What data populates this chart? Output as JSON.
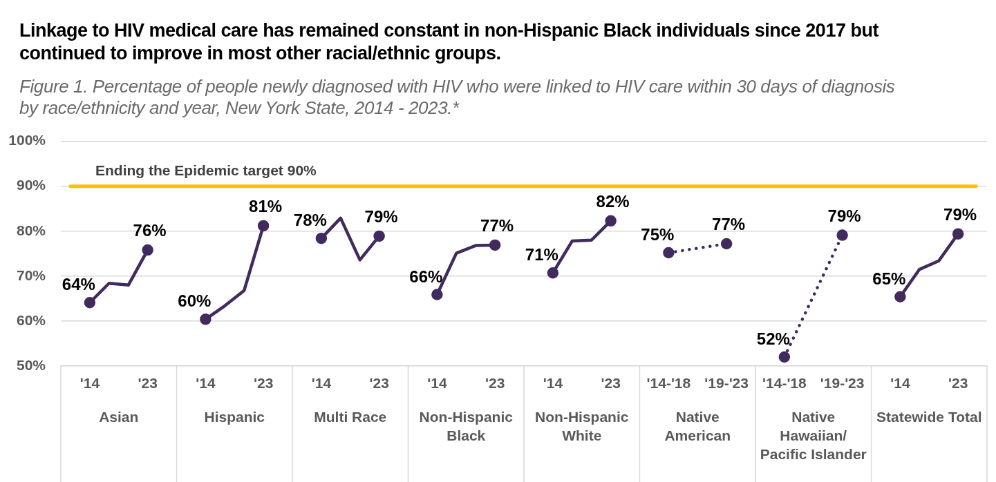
{
  "chart_data": {
    "type": "line",
    "title": "Linkage to HIV medical care has remained constant in non-Hispanic Black individuals since 2017 but continued to improve in most other racial/ethnic groups.",
    "subtitle": "Figure 1. Percentage of people newly diagnosed with HIV who were linked to HIV care within 30 days of diagnosis by race/ethnicity and year, New York State, 2014 - 2023.*",
    "categories": [
      null,
      "'14",
      null,
      null,
      "'23",
      null,
      null,
      "'14",
      null,
      null,
      "'23",
      null,
      null,
      "'14",
      null,
      null,
      "'23",
      null,
      null,
      "'14",
      null,
      null,
      "'23",
      null,
      null,
      "'14",
      null,
      null,
      "'23",
      null,
      null,
      "'14-'18",
      null,
      null,
      "'19-'23",
      null,
      null,
      "'14-'18",
      null,
      null,
      "'19-'23",
      null,
      null,
      "'14",
      null,
      null,
      "'23",
      null
    ],
    "series": [
      {
        "color": "#412b5e",
        "line_style": "solid",
        "values": [
          null,
          64.1,
          68.4,
          68.0,
          75.8,
          null,
          null,
          null,
          null,
          null,
          null,
          null,
          null,
          null,
          null,
          null,
          null,
          null,
          null,
          null,
          null,
          null,
          null,
          null,
          null,
          null,
          null,
          null,
          null,
          null,
          null,
          null,
          null,
          null,
          null,
          null,
          null,
          null,
          null,
          null,
          null,
          null,
          null,
          null,
          null,
          null,
          null,
          null
        ],
        "value_labels": [
          null,
          "64%",
          null,
          null,
          "76%",
          null,
          null,
          null,
          null,
          null,
          null,
          null,
          null,
          null,
          null,
          null,
          null,
          null,
          null,
          null,
          null,
          null,
          null,
          null,
          null,
          null,
          null,
          null,
          null,
          null,
          null,
          null,
          null,
          null,
          null,
          null,
          null,
          null,
          null,
          null,
          null,
          null,
          null,
          null,
          null,
          null,
          null,
          null
        ]
      },
      {
        "color": "#412b5e",
        "line_style": "solid",
        "values": [
          null,
          null,
          null,
          null,
          null,
          null,
          null,
          60.4,
          63.4,
          66.8,
          81.2,
          null,
          null,
          null,
          null,
          null,
          null,
          null,
          null,
          null,
          null,
          null,
          null,
          null,
          null,
          null,
          null,
          null,
          null,
          null,
          null,
          null,
          null,
          null,
          null,
          null,
          null,
          null,
          null,
          null,
          null,
          null,
          null,
          null,
          null,
          null,
          null,
          null
        ],
        "value_labels": [
          null,
          null,
          null,
          null,
          null,
          null,
          null,
          "60%",
          null,
          null,
          "81%",
          null,
          null,
          null,
          null,
          null,
          null,
          null,
          null,
          null,
          null,
          null,
          null,
          null,
          null,
          null,
          null,
          null,
          null,
          null,
          null,
          null,
          null,
          null,
          null,
          null,
          null,
          null,
          null,
          null,
          null,
          null,
          null,
          null,
          null,
          null,
          null,
          null
        ]
      },
      {
        "color": "#412b5e",
        "line_style": "solid",
        "values": [
          null,
          null,
          null,
          null,
          null,
          null,
          null,
          null,
          null,
          null,
          null,
          null,
          null,
          78.4,
          82.9,
          73.6,
          78.9,
          null,
          null,
          null,
          null,
          null,
          null,
          null,
          null,
          null,
          null,
          null,
          null,
          null,
          null,
          null,
          null,
          null,
          null,
          null,
          null,
          null,
          null,
          null,
          null,
          null,
          null,
          null,
          null,
          null,
          null,
          null
        ],
        "value_labels": [
          null,
          null,
          null,
          null,
          null,
          null,
          null,
          null,
          null,
          null,
          null,
          null,
          null,
          "78%",
          null,
          null,
          "79%",
          null,
          null,
          null,
          null,
          null,
          null,
          null,
          null,
          null,
          null,
          null,
          null,
          null,
          null,
          null,
          null,
          null,
          null,
          null,
          null,
          null,
          null,
          null,
          null,
          null,
          null,
          null,
          null,
          null,
          null,
          null
        ]
      },
      {
        "color": "#412b5e",
        "line_style": "solid",
        "values": [
          null,
          null,
          null,
          null,
          null,
          null,
          null,
          null,
          null,
          null,
          null,
          null,
          null,
          null,
          null,
          null,
          null,
          null,
          null,
          65.9,
          75.1,
          76.8,
          76.9,
          null,
          null,
          null,
          null,
          null,
          null,
          null,
          null,
          null,
          null,
          null,
          null,
          null,
          null,
          null,
          null,
          null,
          null,
          null,
          null,
          null,
          null,
          null,
          null,
          null
        ],
        "value_labels": [
          null,
          null,
          null,
          null,
          null,
          null,
          null,
          null,
          null,
          null,
          null,
          null,
          null,
          null,
          null,
          null,
          null,
          null,
          null,
          "66%",
          null,
          null,
          "77%",
          null,
          null,
          null,
          null,
          null,
          null,
          null,
          null,
          null,
          null,
          null,
          null,
          null,
          null,
          null,
          null,
          null,
          null,
          null,
          null,
          null,
          null,
          null,
          null,
          null
        ]
      },
      {
        "color": "#412b5e",
        "line_style": "solid",
        "values": [
          null,
          null,
          null,
          null,
          null,
          null,
          null,
          null,
          null,
          null,
          null,
          null,
          null,
          null,
          null,
          null,
          null,
          null,
          null,
          null,
          null,
          null,
          null,
          null,
          null,
          70.7,
          77.8,
          78.0,
          82.3,
          null,
          null,
          null,
          null,
          null,
          null,
          null,
          null,
          null,
          null,
          null,
          null,
          null,
          null,
          null,
          null,
          null,
          null,
          null
        ],
        "value_labels": [
          null,
          null,
          null,
          null,
          null,
          null,
          null,
          null,
          null,
          null,
          null,
          null,
          null,
          null,
          null,
          null,
          null,
          null,
          null,
          null,
          null,
          null,
          null,
          null,
          null,
          "71%",
          null,
          null,
          "82%",
          null,
          null,
          null,
          null,
          null,
          null,
          null,
          null,
          null,
          null,
          null,
          null,
          null,
          null,
          null,
          null,
          null,
          null,
          null
        ]
      },
      {
        "color": "#412b5e",
        "line_style": "dotted",
        "values": [
          null,
          null,
          null,
          null,
          null,
          null,
          null,
          null,
          null,
          null,
          null,
          null,
          null,
          null,
          null,
          null,
          null,
          null,
          null,
          null,
          null,
          null,
          null,
          null,
          null,
          null,
          null,
          null,
          null,
          null,
          null,
          75.2,
          null,
          null,
          77.2,
          null,
          null,
          null,
          null,
          null,
          null,
          null,
          null,
          null,
          null,
          null,
          null,
          null
        ],
        "value_labels": [
          null,
          null,
          null,
          null,
          null,
          null,
          null,
          null,
          null,
          null,
          null,
          null,
          null,
          null,
          null,
          null,
          null,
          null,
          null,
          null,
          null,
          null,
          null,
          null,
          null,
          null,
          null,
          null,
          null,
          null,
          null,
          "75%",
          null,
          null,
          "77%",
          null,
          null,
          null,
          null,
          null,
          null,
          null,
          null,
          null,
          null,
          null,
          null,
          null
        ]
      },
      {
        "color": "#412b5e",
        "line_style": "dotted",
        "values": [
          null,
          null,
          null,
          null,
          null,
          null,
          null,
          null,
          null,
          null,
          null,
          null,
          null,
          null,
          null,
          null,
          null,
          null,
          null,
          null,
          null,
          null,
          null,
          null,
          null,
          null,
          null,
          null,
          null,
          null,
          null,
          null,
          null,
          null,
          null,
          null,
          null,
          52.0,
          null,
          null,
          79.1,
          null,
          null,
          null,
          null,
          null,
          null,
          null
        ],
        "value_labels": [
          null,
          null,
          null,
          null,
          null,
          null,
          null,
          null,
          null,
          null,
          null,
          null,
          null,
          null,
          null,
          null,
          null,
          null,
          null,
          null,
          null,
          null,
          null,
          null,
          null,
          null,
          null,
          null,
          null,
          null,
          null,
          null,
          null,
          null,
          null,
          null,
          null,
          "52%",
          null,
          null,
          "79%",
          null,
          null,
          null,
          null,
          null,
          null,
          null
        ]
      },
      {
        "color": "#412b5e",
        "line_style": "solid",
        "values": [
          null,
          null,
          null,
          null,
          null,
          null,
          null,
          null,
          null,
          null,
          null,
          null,
          null,
          null,
          null,
          null,
          null,
          null,
          null,
          null,
          null,
          null,
          null,
          null,
          null,
          null,
          null,
          null,
          null,
          null,
          null,
          null,
          null,
          null,
          null,
          null,
          null,
          null,
          null,
          null,
          null,
          null,
          null,
          65.4,
          71.5,
          73.4,
          79.4,
          null
        ],
        "value_labels": [
          null,
          null,
          null,
          null,
          null,
          null,
          null,
          null,
          null,
          null,
          null,
          null,
          null,
          null,
          null,
          null,
          null,
          null,
          null,
          null,
          null,
          null,
          null,
          null,
          null,
          null,
          null,
          null,
          null,
          null,
          null,
          null,
          null,
          null,
          null,
          null,
          null,
          null,
          null,
          null,
          null,
          null,
          null,
          "65%",
          null,
          null,
          "79%",
          null
        ]
      }
    ],
    "ylim": [
      50,
      100
    ],
    "yticks": [
      {
        "value": 50,
        "label": "50%"
      },
      {
        "value": 60,
        "label": "60%"
      },
      {
        "value": 70,
        "label": "70%"
      },
      {
        "value": 80,
        "label": "80%"
      },
      {
        "value": 90,
        "label": "90%"
      },
      {
        "value": 100,
        "label": "100%"
      }
    ],
    "ref_lines": [
      {
        "axis": "y",
        "value": 90,
        "label": "Ending the Epidemic target 90%",
        "color": "#ffc000"
      }
    ],
    "annotations": [
      "Asian",
      "Hispanic",
      "Multi Race",
      "Non-Hispanic Black",
      "Non-Hispanic White",
      "Native American",
      "Native Hawaiian/ Pacific Islander",
      "Statewide Total"
    ],
    "grid": "y",
    "legend": false,
    "marker": "circle"
  }
}
